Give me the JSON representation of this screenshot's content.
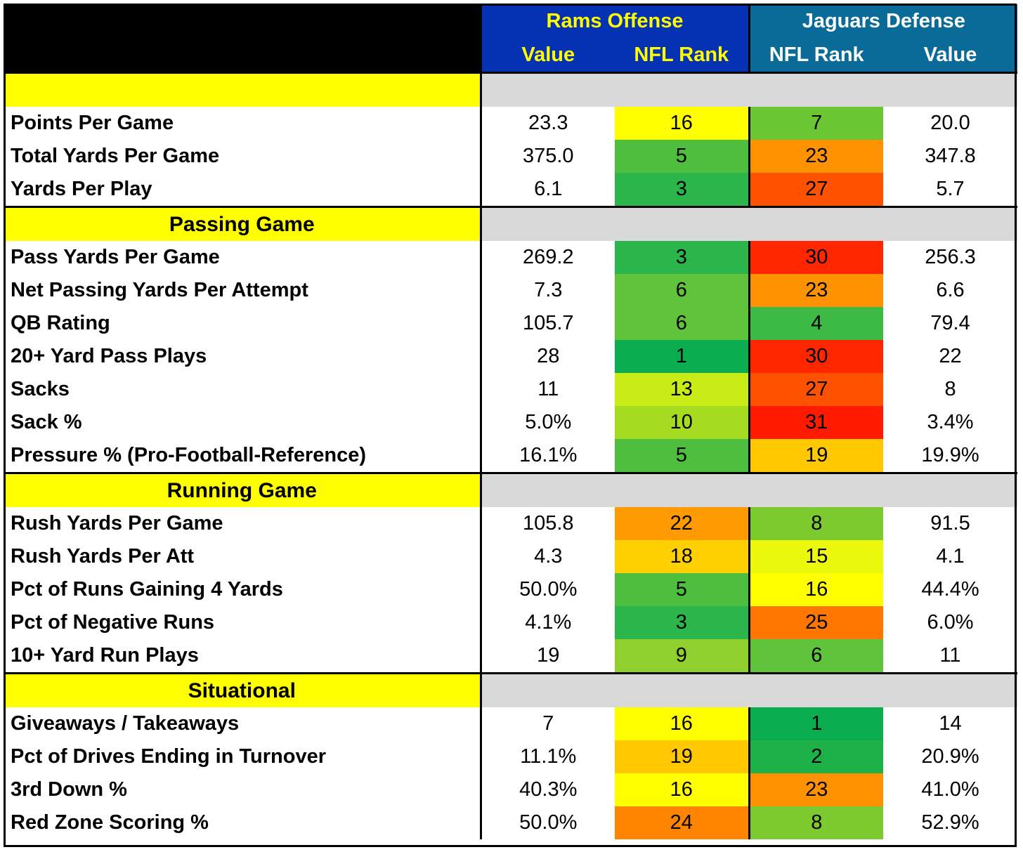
{
  "header": {
    "rams_title": "Rams Offense",
    "jags_title": "Jaguars Defense",
    "col_value": "Value",
    "col_rank": "NFL Rank"
  },
  "rank_colors": {
    "1": "#0aad4f",
    "2": "#1db148",
    "3": "#2cb54a",
    "4": "#3cba45",
    "5": "#4ebe3f",
    "6": "#5fc33b",
    "7": "#6ac733",
    "8": "#7cca30",
    "9": "#8fd02e",
    "10": "#a5dc22",
    "13": "#c9ec17",
    "15": "#ecf80c",
    "16": "#ffff00",
    "18": "#ffd000",
    "19": "#ffc800",
    "22": "#ff9a00",
    "23": "#ff9200",
    "24": "#ff8400",
    "25": "#ff7600",
    "27": "#ff5200",
    "30": "#ff2600",
    "31": "#ff1a00"
  },
  "sections": [
    {
      "title": "",
      "rows": [
        {
          "label": "Points Per Game",
          "off_value": "23.3",
          "off_rank": "16",
          "def_rank": "7",
          "def_value": "20.0"
        },
        {
          "label": "Total Yards Per Game",
          "off_value": "375.0",
          "off_rank": "5",
          "def_rank": "23",
          "def_value": "347.8"
        },
        {
          "label": "Yards Per Play",
          "off_value": "6.1",
          "off_rank": "3",
          "def_rank": "27",
          "def_value": "5.7"
        }
      ]
    },
    {
      "title": "Passing Game",
      "rows": [
        {
          "label": "Pass Yards Per Game",
          "off_value": "269.2",
          "off_rank": "3",
          "def_rank": "30",
          "def_value": "256.3"
        },
        {
          "label": "Net Passing Yards Per Attempt",
          "off_value": "7.3",
          "off_rank": "6",
          "def_rank": "23",
          "def_value": "6.6"
        },
        {
          "label": "QB Rating",
          "off_value": "105.7",
          "off_rank": "6",
          "def_rank": "4",
          "def_value": "79.4"
        },
        {
          "label": "20+ Yard Pass Plays",
          "off_value": "28",
          "off_rank": "1",
          "def_rank": "30",
          "def_value": "22"
        },
        {
          "label": "Sacks",
          "off_value": "11",
          "off_rank": "13",
          "def_rank": "27",
          "def_value": "8"
        },
        {
          "label": "Sack %",
          "off_value": "5.0%",
          "off_rank": "10",
          "def_rank": "31",
          "def_value": "3.4%"
        },
        {
          "label": "Pressure % (Pro-Football-Reference)",
          "off_value": "16.1%",
          "off_rank": "5",
          "def_rank": "19",
          "def_value": "19.9%"
        }
      ]
    },
    {
      "title": "Running Game",
      "rows": [
        {
          "label": "Rush Yards Per Game",
          "off_value": "105.8",
          "off_rank": "22",
          "def_rank": "8",
          "def_value": "91.5"
        },
        {
          "label": "Rush Yards Per Att",
          "off_value": "4.3",
          "off_rank": "18",
          "def_rank": "15",
          "def_value": "4.1"
        },
        {
          "label": "Pct of Runs Gaining 4 Yards",
          "off_value": "50.0%",
          "off_rank": "5",
          "def_rank": "16",
          "def_value": "44.4%"
        },
        {
          "label": "Pct of Negative Runs",
          "off_value": "4.1%",
          "off_rank": "3",
          "def_rank": "25",
          "def_value": "6.0%"
        },
        {
          "label": "10+ Yard Run Plays",
          "off_value": "19",
          "off_rank": "9",
          "def_rank": "6",
          "def_value": "11"
        }
      ]
    },
    {
      "title": "Situational",
      "rows": [
        {
          "label": "Giveaways / Takeaways",
          "off_value": "7",
          "off_rank": "16",
          "def_rank": "1",
          "def_value": "14"
        },
        {
          "label": "Pct of Drives Ending in Turnover",
          "off_value": "11.1%",
          "off_rank": "19",
          "def_rank": "2",
          "def_value": "20.9%"
        },
        {
          "label": "3rd Down %",
          "off_value": "40.3%",
          "off_rank": "16",
          "def_rank": "23",
          "def_value": "41.0%"
        },
        {
          "label": "Red Zone Scoring %",
          "off_value": "50.0%",
          "off_rank": "24",
          "def_rank": "8",
          "def_value": "52.9%"
        }
      ]
    }
  ]
}
